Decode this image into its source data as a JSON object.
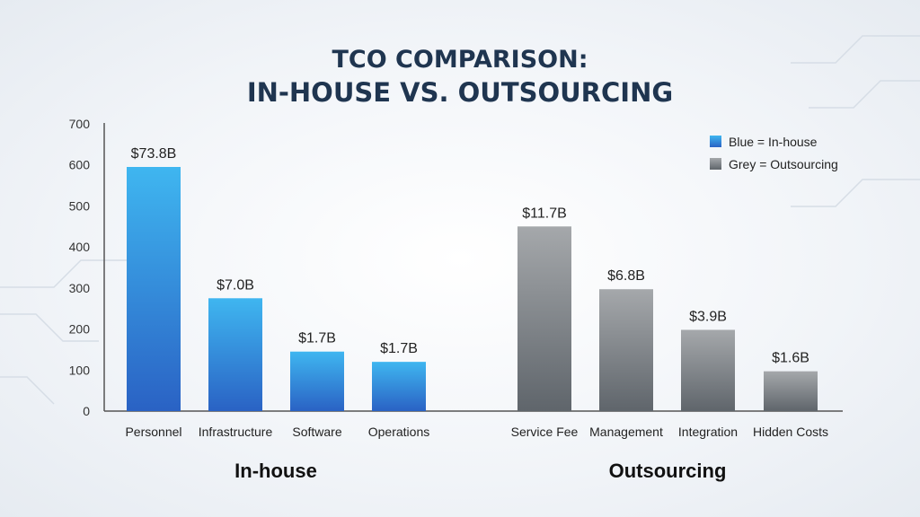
{
  "chart_data": {
    "type": "bar",
    "title": "TCO COMPARISON:",
    "subtitle": "IN-HOUSE VS. OUTSOURCING",
    "ylim": [
      0,
      700
    ],
    "yticks": [
      0,
      100,
      200,
      300,
      400,
      500,
      600,
      700
    ],
    "grid": false,
    "legend_position": "top-right",
    "legend": [
      {
        "label": "Blue = In-house",
        "color": "#2f8fe0"
      },
      {
        "label": "Grey = Outsourcing",
        "color": "#85898d"
      }
    ],
    "groups": [
      {
        "name": "In-house",
        "color_top": "#3fb6f0",
        "color_bottom": "#2a62c4",
        "categories": [
          "Personnel",
          "Infrastructure",
          "Software",
          "Operations"
        ],
        "values": [
          595,
          275,
          145,
          120
        ],
        "labels": [
          "$73.8B",
          "$7.0B",
          "$1.7B",
          "$1.7B"
        ]
      },
      {
        "name": "Outsourcing",
        "color_top": "#a5a8ab",
        "color_bottom": "#5f656b",
        "categories": [
          "Service Fee",
          "Management",
          "Integration",
          "Hidden Costs"
        ],
        "values": [
          450,
          297,
          198,
          97
        ],
        "labels": [
          "$11.7B",
          "$6.8B",
          "$3.9B",
          "$1.6B"
        ]
      }
    ]
  }
}
